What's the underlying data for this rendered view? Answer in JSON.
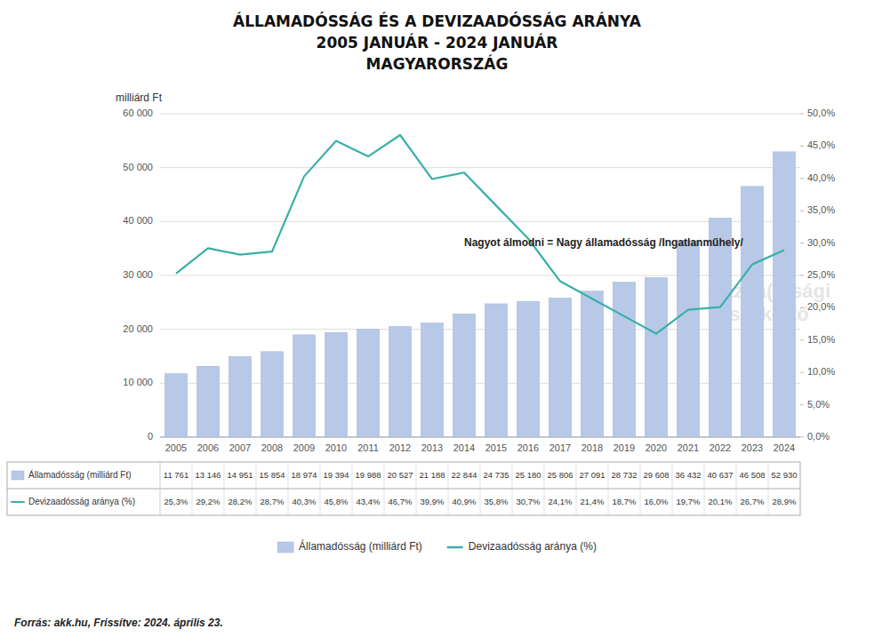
{
  "chart_data": {
    "type": "bar",
    "title": "ÁLLAMADÓSSÁG ÉS A DEVIZAADÓSSÁG ARÁNYA",
    "subtitle": [
      "2005 JANUÁR - 2024 JANUÁR",
      "MAGYARORSZÁG"
    ],
    "ylabel": "milliárd Ft",
    "categories": [
      "2005",
      "2006",
      "2007",
      "2008",
      "2009",
      "2010",
      "2011",
      "2012",
      "2013",
      "2014",
      "2015",
      "2016",
      "2017",
      "2018",
      "2019",
      "2020",
      "2021",
      "2022",
      "2023",
      "2024"
    ],
    "series": [
      {
        "name": "Államadósság (milliárd Ft)",
        "type": "bar",
        "color": "#b8c9e8",
        "values": [
          11761,
          13146,
          14951,
          15854,
          18974,
          19394,
          19988,
          20527,
          21188,
          22844,
          24735,
          25180,
          25806,
          27091,
          28732,
          29608,
          36432,
          40637,
          46508,
          52930
        ],
        "value_labels": [
          "11 761",
          "13 146",
          "14 951",
          "15 854",
          "18 974",
          "19 394",
          "19 988",
          "20 527",
          "21 188",
          "22 844",
          "24 735",
          "25 180",
          "25 806",
          "27 091",
          "28 732",
          "29 608",
          "36 432",
          "40 637",
          "46 508",
          "52 930"
        ]
      },
      {
        "name": "Devizaadósság aránya (%)",
        "type": "line",
        "axis": "y2",
        "color": "#3aafa9",
        "values": [
          25.3,
          29.2,
          28.2,
          28.7,
          40.3,
          45.8,
          43.4,
          46.7,
          39.9,
          40.9,
          35.8,
          30.7,
          24.1,
          21.4,
          18.7,
          16.0,
          19.7,
          20.1,
          26.7,
          28.9
        ],
        "value_labels": [
          "25,3%",
          "29,2%",
          "28,2%",
          "28,7%",
          "40,3%",
          "45,8%",
          "43,4%",
          "46,7%",
          "39,9%",
          "40,9%",
          "35,8%",
          "30,7%",
          "24,1%",
          "21,4%",
          "18,7%",
          "16,0%",
          "19,7%",
          "20,1%",
          "26,7%",
          "28,9%"
        ]
      }
    ],
    "ylim": [
      0,
      60000
    ],
    "yticks": [
      0,
      {
        "value": 10000,
        "label": "10 000"
      },
      {
        "value": 20000,
        "label": "20 000"
      },
      {
        "value": 30000,
        "label": "30 000"
      },
      {
        "value": 40000,
        "label": "40 000"
      },
      {
        "value": 50000,
        "label": "50 000"
      },
      {
        "value": 60000,
        "label": "60 000"
      }
    ],
    "y2lim": [
      0,
      50
    ],
    "y2ticks": [
      {
        "value": 0,
        "label": "0,0%"
      },
      {
        "value": 5,
        "label": "5,0%"
      },
      {
        "value": 10,
        "label": "10,0%"
      },
      {
        "value": 15,
        "label": "15,0%"
      },
      {
        "value": 20,
        "label": "20,0%"
      },
      {
        "value": 25,
        "label": "25,0%"
      },
      {
        "value": 30,
        "label": "30,0%"
      },
      {
        "value": 35,
        "label": "35,0%"
      },
      {
        "value": 40,
        "label": "40,0%"
      },
      {
        "value": 45,
        "label": "45,0%"
      },
      {
        "value": 50,
        "label": "50,0%"
      }
    ],
    "annotations": [
      {
        "text": "Nagyot álmodni = Nagy államadósság /Ingatlanműhely/",
        "x": "2014",
        "y": 35000
      }
    ],
    "watermark": "Gazda(g)sági\nszakértő",
    "source": "Forrás: akk.hu, Frissítve: 2024. április 23.",
    "grid": true,
    "legend": "bottom"
  }
}
